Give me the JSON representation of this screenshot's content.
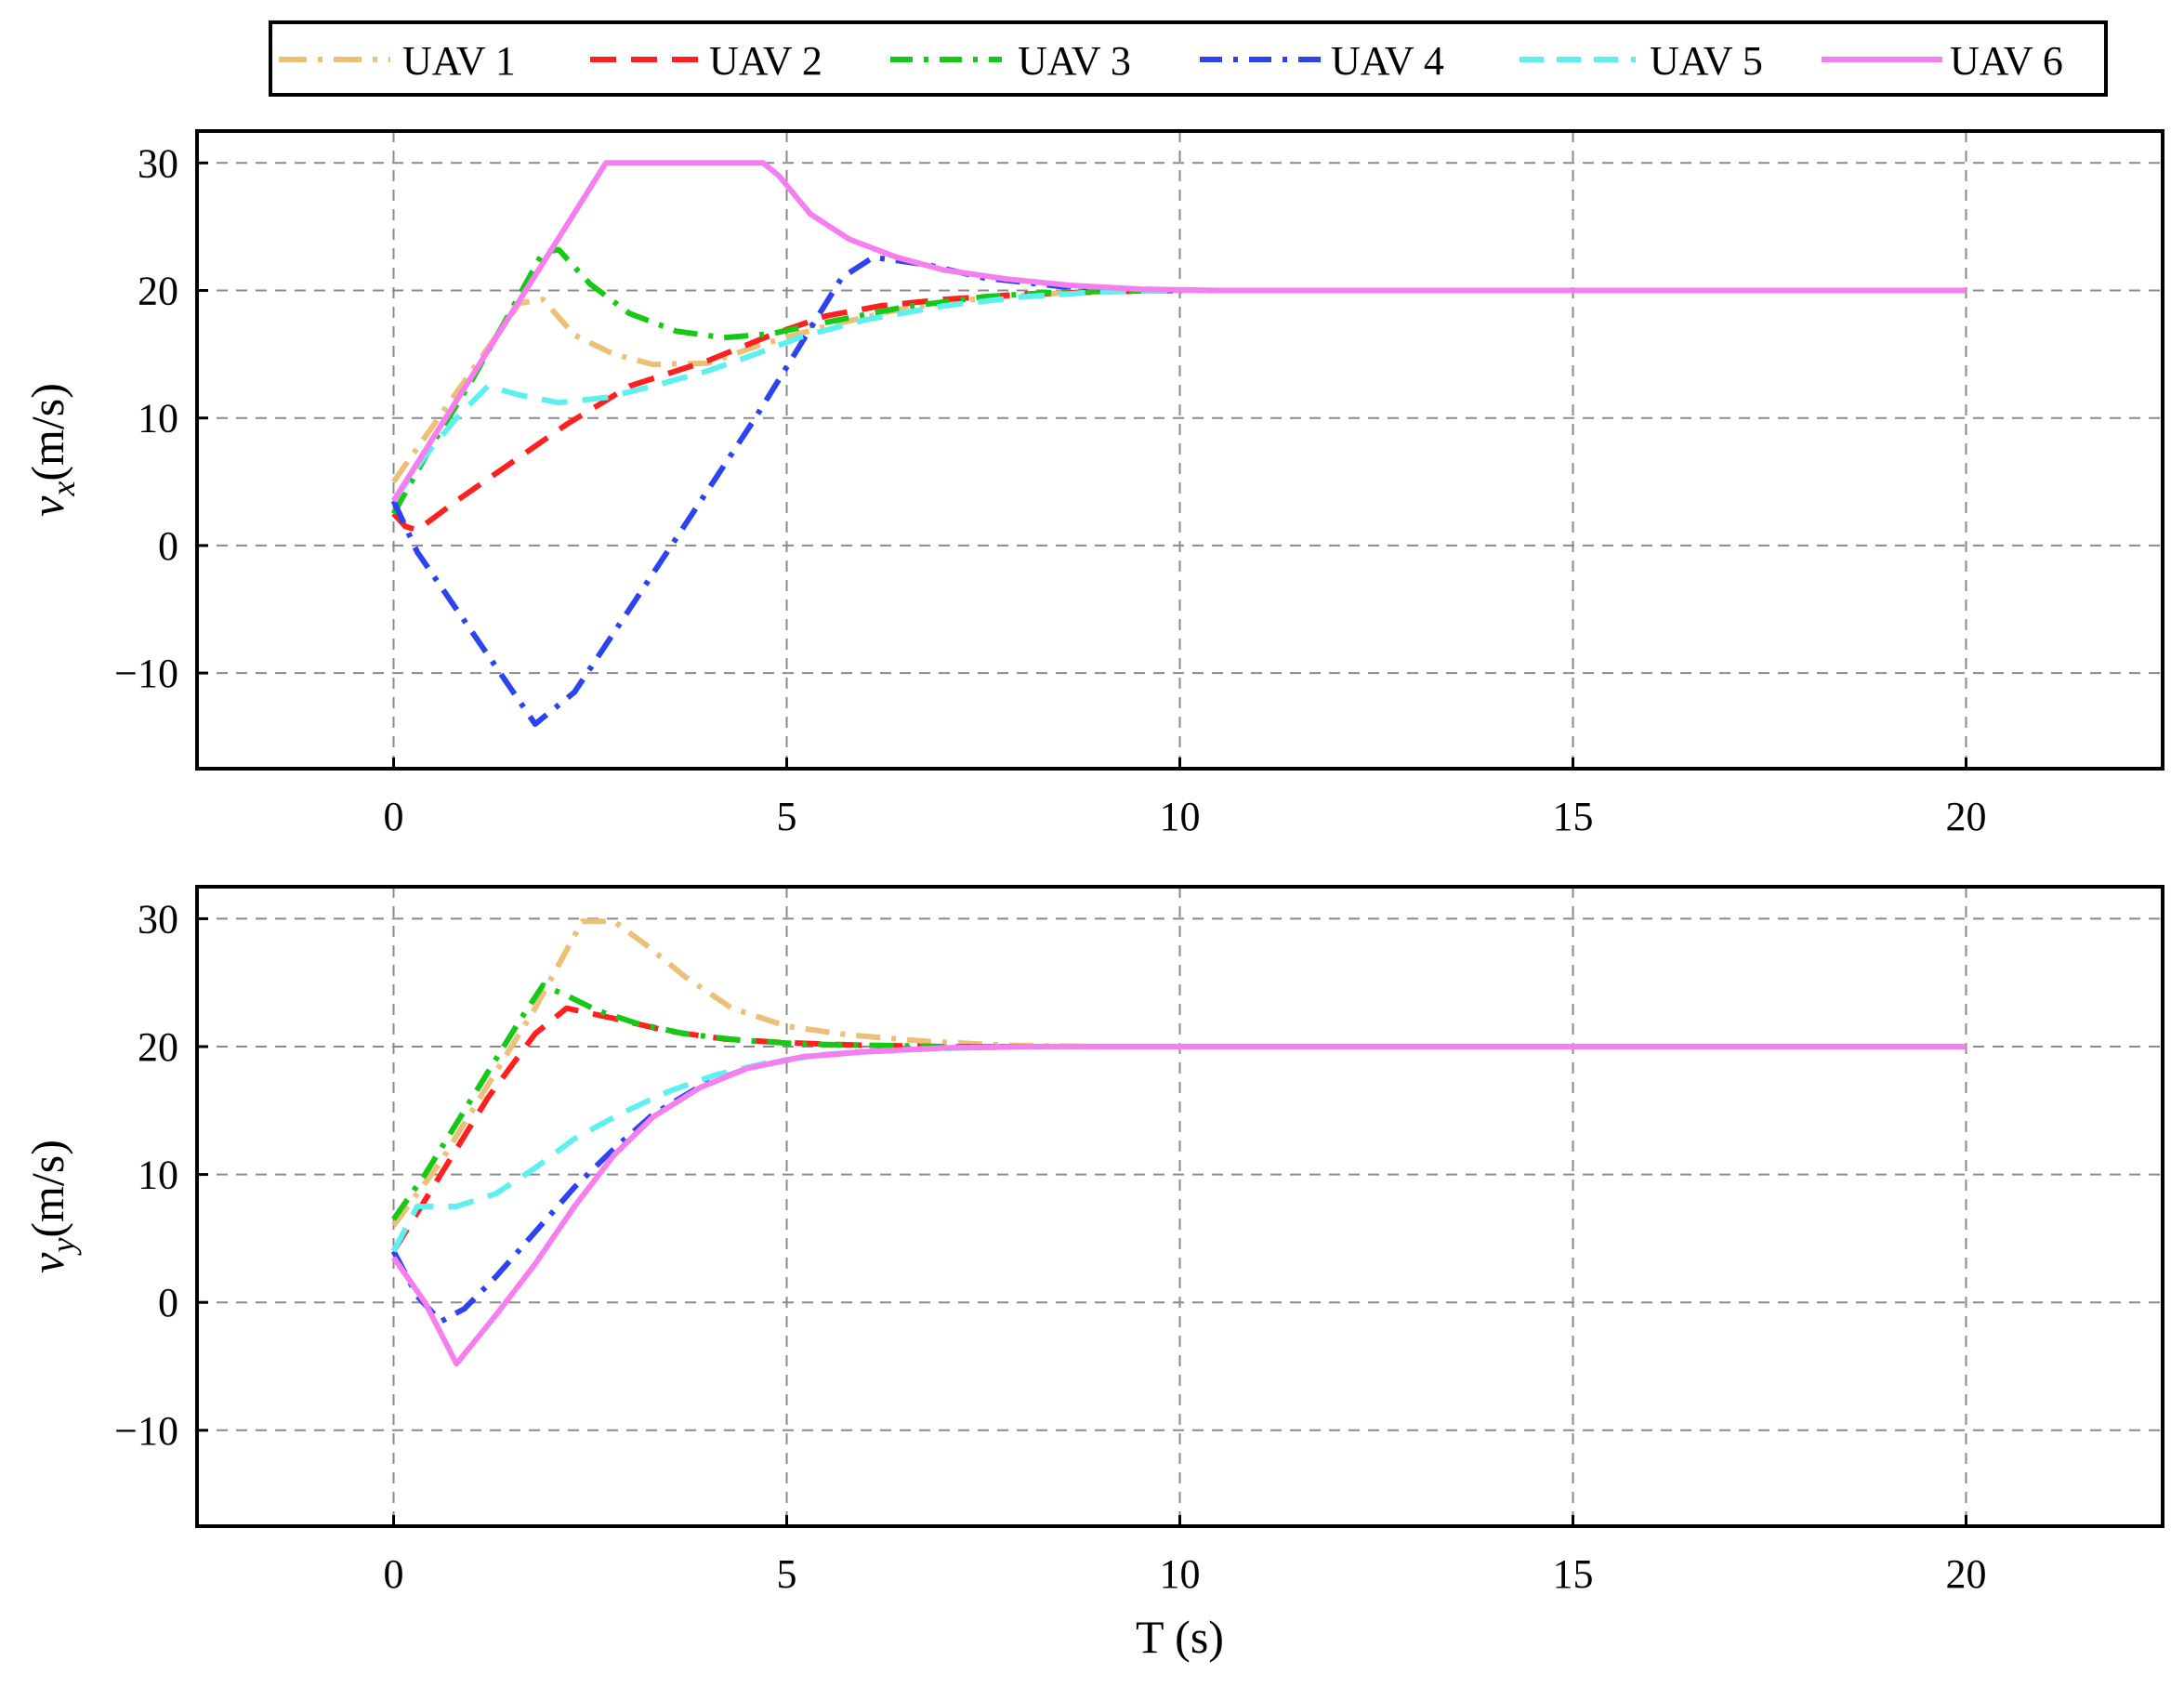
{
  "chart_data": [
    {
      "type": "line",
      "ylabel_var": "v",
      "ylabel_sub": "x",
      "ylabel_unit": "(m/s)",
      "xlabel": "",
      "xlim": [
        -2.5,
        22.5
      ],
      "ylim": [
        -17.5,
        32.5
      ],
      "xticks": [
        0,
        5,
        10,
        15,
        20
      ],
      "yticks": [
        30,
        20,
        10,
        0,
        -10
      ],
      "ytick_labels": [
        "30",
        "20",
        "10",
        "0",
        "−10"
      ],
      "grid": true,
      "series": [
        {
          "name": "UAV 1",
          "x": [
            0,
            0.4,
            0.8,
            1.2,
            1.6,
            1.9,
            2.3,
            2.8,
            3.3,
            4,
            4.7,
            5.5,
            6.5,
            7.5,
            8.5,
            9.5,
            10,
            12,
            15,
            20
          ],
          "y": [
            5,
            8.5,
            12,
            15.5,
            19,
            19.3,
            16.5,
            15,
            14.2,
            14.3,
            15.8,
            17.2,
            18.6,
            19.4,
            19.8,
            20,
            20,
            20,
            20,
            20
          ]
        },
        {
          "name": "UAV 2",
          "x": [
            0,
            0.15,
            0.3,
            0.8,
            1.5,
            2.2,
            3,
            4,
            4.8,
            5.5,
            6.2,
            7,
            8,
            9,
            10,
            12,
            15,
            20
          ],
          "y": [
            2.5,
            1.5,
            1.2,
            3.5,
            6.5,
            9.5,
            12.5,
            14.5,
            16.5,
            18,
            18.8,
            19.3,
            19.7,
            19.9,
            20,
            20,
            20,
            20
          ]
        },
        {
          "name": "UAV 3",
          "x": [
            0,
            0.5,
            1,
            1.5,
            1.9,
            2.1,
            2.5,
            3,
            3.6,
            4.2,
            4.8,
            5.5,
            6.5,
            7.5,
            8.5,
            10,
            12,
            15,
            20
          ],
          "y": [
            2.5,
            8,
            13,
            18.5,
            23,
            23.2,
            20.5,
            18.2,
            16.8,
            16.3,
            16.6,
            17.5,
            18.7,
            19.5,
            19.9,
            20,
            20,
            20,
            20
          ]
        },
        {
          "name": "UAV 4",
          "x": [
            0,
            0.3,
            0.8,
            1.3,
            1.8,
            2.3,
            3,
            3.8,
            4.6,
            5.2,
            5.7,
            6.1,
            6.8,
            7.5,
            8.5,
            10,
            12,
            15,
            20
          ],
          "y": [
            3.5,
            -0.5,
            -5,
            -9.5,
            -14,
            -11.5,
            -5,
            2.5,
            10,
            16,
            21,
            22.6,
            22,
            21,
            20.3,
            20,
            20,
            20,
            20
          ]
        },
        {
          "name": "UAV 5",
          "x": [
            0,
            0.4,
            0.8,
            1.2,
            1.6,
            2.1,
            2.7,
            3.3,
            4,
            4.6,
            5.2,
            6,
            7,
            8,
            9,
            10,
            12,
            15,
            20
          ],
          "y": [
            3.5,
            7,
            10,
            12.5,
            11.8,
            11.2,
            11.6,
            12.5,
            13.7,
            15,
            16.4,
            17.7,
            18.8,
            19.5,
            19.9,
            20,
            20,
            20,
            20
          ]
        },
        {
          "name": "UAV 6",
          "x": [
            0,
            2.7,
            4.7,
            4.9,
            5.3,
            5.8,
            6.4,
            7,
            7.8,
            8.6,
            9.5,
            10.5,
            12,
            15,
            20
          ],
          "y": [
            3.5,
            30,
            30,
            29,
            26,
            24,
            22.6,
            21.6,
            20.9,
            20.4,
            20.1,
            20,
            20,
            20,
            20
          ]
        }
      ]
    },
    {
      "type": "line",
      "ylabel_var": "v",
      "ylabel_sub": "y",
      "ylabel_unit": "(m/s)",
      "xlabel": "T (s)",
      "xlim": [
        -2.5,
        22.5
      ],
      "ylim": [
        -17.5,
        32.5
      ],
      "xticks": [
        0,
        5,
        10,
        15,
        20
      ],
      "yticks": [
        30,
        20,
        10,
        0,
        -10
      ],
      "ytick_labels": [
        "30",
        "20",
        "10",
        "0",
        "−10"
      ],
      "grid": true,
      "series": [
        {
          "name": "UAV 1",
          "x": [
            0,
            0.6,
            1.2,
            1.8,
            2.4,
            2.8,
            3.2,
            3.7,
            4.3,
            5,
            5.8,
            6.8,
            7.8,
            9,
            10,
            12,
            15,
            20
          ],
          "y": [
            6,
            11,
            17,
            23,
            29.8,
            29.8,
            28,
            25.5,
            23,
            21.6,
            20.9,
            20.4,
            20.1,
            20,
            20,
            20,
            20,
            20
          ]
        },
        {
          "name": "UAV 2",
          "x": [
            0,
            0.6,
            1.2,
            1.8,
            2.2,
            2.8,
            3.5,
            4.2,
            5,
            6,
            7,
            8,
            10,
            12,
            15,
            20
          ],
          "y": [
            4,
            10,
            16,
            21,
            23,
            22.2,
            21.2,
            20.6,
            20.3,
            20.1,
            20,
            20,
            20,
            20,
            20,
            20
          ]
        },
        {
          "name": "UAV 3",
          "x": [
            0,
            0.4,
            0.8,
            1.2,
            1.6,
            1.9,
            2.2,
            2.6,
            3.1,
            3.7,
            4.4,
            5.2,
            6,
            7,
            8,
            10,
            12,
            15,
            20
          ],
          "y": [
            6.5,
            10,
            14,
            18,
            22,
            24.8,
            24,
            22.8,
            21.8,
            21,
            20.5,
            20.2,
            20.1,
            20,
            20,
            20,
            20,
            20,
            20
          ]
        },
        {
          "name": "UAV 4",
          "x": [
            0,
            0.3,
            0.6,
            0.9,
            1.3,
            1.8,
            2.3,
            2.8,
            3.3,
            3.9,
            4.5,
            5.2,
            6,
            7,
            8,
            9,
            10,
            12,
            15,
            20
          ],
          "y": [
            4,
            0.5,
            -1.5,
            -0.5,
            2,
            5.5,
            9,
            12,
            14.7,
            16.9,
            18.3,
            19.2,
            19.6,
            19.9,
            20,
            20,
            20,
            20,
            20,
            20
          ]
        },
        {
          "name": "UAV 5",
          "x": [
            0,
            0.3,
            0.8,
            1.3,
            1.8,
            2.3,
            2.9,
            3.5,
            4.1,
            4.8,
            5.5,
            6.3,
            7.2,
            8.2,
            9.5,
            10,
            12,
            15,
            20
          ],
          "y": [
            4,
            7.5,
            7.5,
            8.5,
            10.5,
            12.8,
            14.8,
            16.5,
            17.8,
            18.8,
            19.4,
            19.7,
            19.9,
            20,
            20,
            20,
            20,
            20,
            20
          ]
        },
        {
          "name": "UAV 6",
          "x": [
            0,
            0.4,
            0.8,
            1.3,
            1.8,
            2.3,
            2.8,
            3.3,
            3.9,
            4.5,
            5.2,
            6,
            7,
            8,
            9,
            10,
            12,
            15,
            20
          ],
          "y": [
            3.5,
            0,
            -4.8,
            -1,
            3,
            7.5,
            11.5,
            14.5,
            16.8,
            18.3,
            19.2,
            19.6,
            19.9,
            20,
            20,
            20,
            20,
            20,
            20
          ]
        }
      ]
    }
  ],
  "legend": {
    "placement": "top",
    "entries": [
      {
        "label": "UAV 1",
        "color": "#EDC079",
        "dash": "dashdot"
      },
      {
        "label": "UAV 2",
        "color": "#FF1F1F",
        "dash": "dashed"
      },
      {
        "label": "UAV 3",
        "color": "#17C917",
        "dash": "dashdot"
      },
      {
        "label": "UAV 4",
        "color": "#2B44F0",
        "dash": "dashdot"
      },
      {
        "label": "UAV 5",
        "color": "#5EF0F0",
        "dash": "dashed"
      },
      {
        "label": "UAV 6",
        "color": "#F57FEF",
        "dash": "solid"
      }
    ]
  }
}
